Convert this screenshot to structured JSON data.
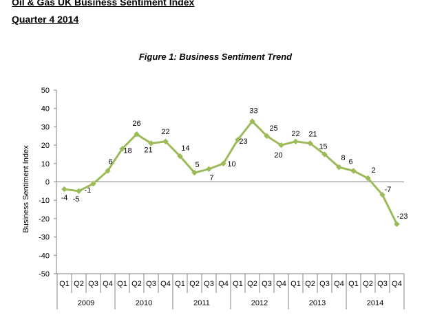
{
  "page": {
    "title_line1": "Oil & Gas UK Business Sentiment Index",
    "title_line2": "Quarter 4 2014"
  },
  "chart_data": {
    "type": "line",
    "title": "Figure 1: Business Sentiment Trend",
    "xlabel": "",
    "ylabel": "Business Sentiment Index",
    "ylim": [
      -50,
      50
    ],
    "yticks": [
      -50,
      -40,
      -30,
      -20,
      -10,
      0,
      10,
      20,
      30,
      40,
      50
    ],
    "grid": false,
    "legend": "none",
    "line_color": "#9bbb59",
    "years": [
      "2009",
      "2010",
      "2011",
      "2012",
      "2013",
      "2014"
    ],
    "quarters": [
      "Q1",
      "Q2",
      "Q3",
      "Q4"
    ],
    "values": [
      -4,
      -5,
      -1,
      6,
      18,
      26,
      21,
      22,
      14,
      5,
      7,
      10,
      23,
      33,
      25,
      20,
      22,
      21,
      15,
      8,
      6,
      2,
      -7,
      -23
    ],
    "data_labels": [
      "-4",
      "-5",
      "-1",
      "6",
      "18",
      "26",
      "21",
      "22",
      "14",
      "5",
      "7",
      "10",
      "23",
      "33",
      "25",
      "20",
      "22",
      "21",
      "15",
      "8",
      "6",
      "2",
      "-7",
      "-23"
    ]
  }
}
